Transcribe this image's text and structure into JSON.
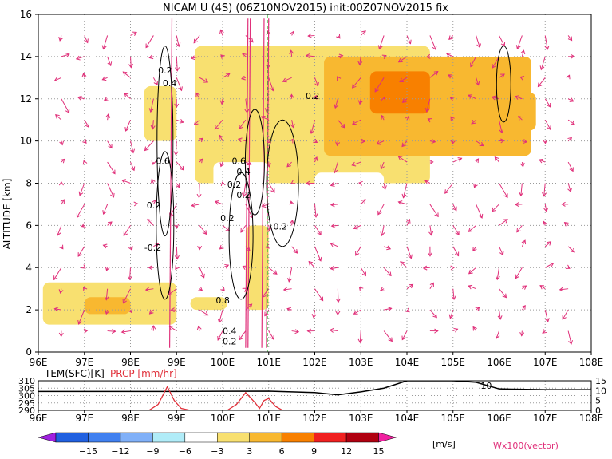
{
  "title": "NICAM U (4S) (06Z10NOV2015) init:00Z07NOV2015 fix",
  "chart_data": [
    {
      "type": "heatmap",
      "title": "NICAM U (4S) (06Z10NOV2015) init:00Z07NOV2015 fix",
      "ylabel": "ALTITUDE [km]",
      "xlabel": "",
      "xlim": [
        96,
        108
      ],
      "ylim": [
        0,
        16
      ],
      "x_ticks": [
        "96E",
        "97E",
        "98E",
        "99E",
        "100E",
        "101E",
        "102E",
        "103E",
        "104E",
        "105E",
        "106E",
        "107E",
        "108E"
      ],
      "y_ticks": [
        "0",
        "2",
        "4",
        "6",
        "8",
        "10",
        "12",
        "14",
        "16"
      ],
      "grid": true,
      "contour_labels": [
        "0.2",
        "0.4",
        "0.6",
        "0.2",
        "0.2",
        "0.6",
        "0.4",
        "0.2",
        "0.2",
        "0.2",
        "-0.2",
        "0.8",
        "0.4",
        "0.2",
        "0.2"
      ],
      "colorbar": {
        "levels": [
          -15,
          -12,
          -9,
          -6,
          -3,
          3,
          6,
          9,
          12,
          15
        ],
        "tick_labels": [
          "−15",
          "−12",
          "−9",
          "−6",
          "−3",
          "3",
          "6",
          "9",
          "12",
          "15"
        ],
        "colors": [
          "#a020e0",
          "#2060e0",
          "#4080f0",
          "#80b0f8",
          "#b0ecf8",
          "#ffffff",
          "#f8e070",
          "#f8b830",
          "#f88000",
          "#f02020",
          "#b00010",
          "#f020a0"
        ],
        "unit": "[m/s]"
      },
      "vector_label": "Wx100(vector)",
      "zones": [
        {
          "x0": 96.1,
          "x1": 99.0,
          "y0": 1.3,
          "y1": 3.3,
          "level": 3
        },
        {
          "x0": 97.0,
          "x1": 98.0,
          "y0": 1.8,
          "y1": 2.6,
          "level": 6
        },
        {
          "x0": 99.3,
          "x1": 100.1,
          "y0": 2.0,
          "y1": 2.6,
          "level": 3
        },
        {
          "x0": 98.3,
          "x1": 99.0,
          "y0": 10.0,
          "y1": 12.6,
          "level": 3
        },
        {
          "x0": 100.5,
          "x1": 101.0,
          "y0": 2.0,
          "y1": 6.0,
          "level": 3
        },
        {
          "x0": 99.4,
          "x1": 104.5,
          "y0": 8.0,
          "y1": 14.5,
          "level": 3
        },
        {
          "x0": 102.2,
          "x1": 106.7,
          "y0": 9.3,
          "y1": 14.0,
          "level": 6
        },
        {
          "x0": 103.2,
          "x1": 104.5,
          "y0": 11.3,
          "y1": 13.3,
          "level": 9
        },
        {
          "x0": 104.8,
          "x1": 106.8,
          "y0": 10.5,
          "y1": 12.3,
          "level": 6
        },
        {
          "x0": 102.0,
          "x1": 103.5,
          "y0": 6.5,
          "y1": 8.5,
          "level": -3
        },
        {
          "x0": 96.1,
          "x1": 97.1,
          "y0": 14.5,
          "y1": 16.0,
          "level": -3
        },
        {
          "x0": 96.5,
          "x1": 97.5,
          "y0": 5.5,
          "y1": 7.0,
          "level": -3
        },
        {
          "x0": 103.0,
          "x1": 106.5,
          "y0": 4.0,
          "y1": 6.2,
          "level": -3
        },
        {
          "x0": 104.8,
          "x1": 108.0,
          "y0": 14.0,
          "y1": 16.0,
          "level": -3
        },
        {
          "x0": 99.8,
          "x1": 101.0,
          "y0": 7.5,
          "y1": 9.0,
          "level": -3
        }
      ]
    },
    {
      "type": "line",
      "x_ticks": [
        "96E",
        "97E",
        "98E",
        "99E",
        "100E",
        "101E",
        "102E",
        "103E",
        "104E",
        "105E",
        "106E",
        "107E",
        "108E"
      ],
      "xlim": [
        96,
        108
      ],
      "left_axis": {
        "label": "TEM(SFC)[K]",
        "ticks": [
          "310",
          "305",
          "300",
          "295",
          "290"
        ],
        "range": [
          290,
          310
        ]
      },
      "right_axis": {
        "label": "PRCP [mm/hr]",
        "ticks": [
          "15",
          "10",
          "5",
          "0"
        ],
        "range": [
          0,
          15
        ]
      },
      "annotation": "10",
      "series": [
        {
          "name": "TEM(SFC)[K]",
          "color": "#000000",
          "x": [
            96,
            97,
            98,
            99,
            100,
            101,
            102,
            102.5,
            103,
            103.5,
            104,
            105,
            105.5,
            106,
            107,
            108
          ],
          "y": [
            302.8,
            302.8,
            302.8,
            302.8,
            302.9,
            303.0,
            302.0,
            300.5,
            302.5,
            305.0,
            310.0,
            310.0,
            309.0,
            304.5,
            304.0,
            304.0
          ]
        },
        {
          "name": "PRCP [mm/hr]",
          "color": "#e0303a",
          "x": [
            96,
            98.4,
            98.6,
            98.8,
            98.95,
            99.1,
            99.3,
            100.1,
            100.3,
            100.5,
            100.7,
            100.8,
            100.9,
            101.0,
            101.15,
            101.3,
            108
          ],
          "y": [
            0,
            0,
            3,
            12,
            5,
            1,
            0,
            0,
            3,
            9,
            4,
            1,
            5,
            6,
            2,
            0,
            0
          ]
        }
      ]
    }
  ]
}
